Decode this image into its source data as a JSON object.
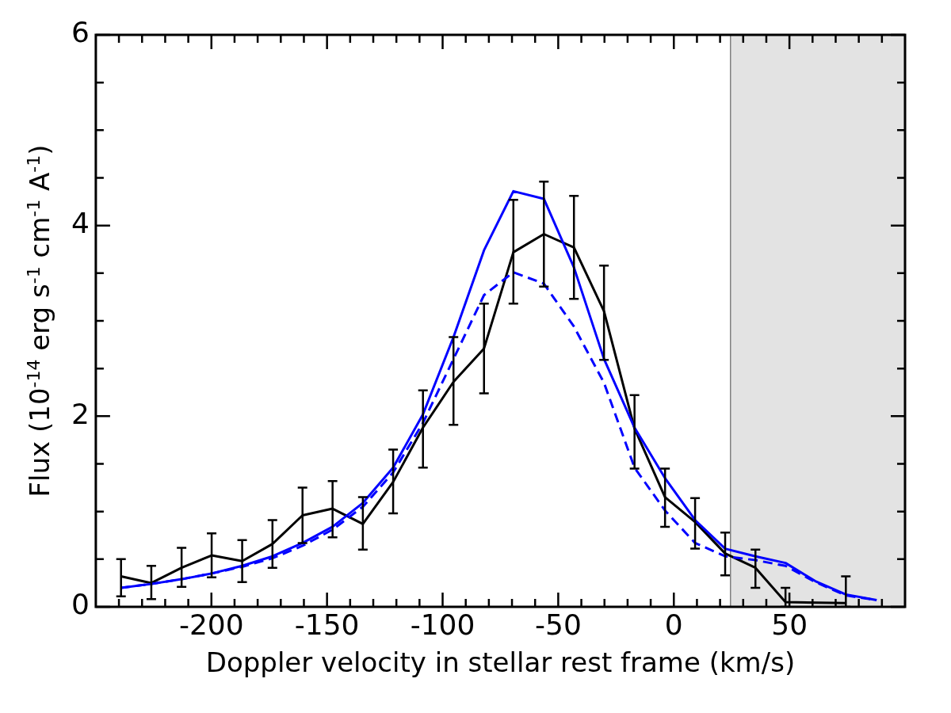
{
  "chart_data": {
    "type": "line",
    "xlabel": "Doppler velocity in stellar rest frame (km/s)",
    "ylabel": "Flux (10$^{-14}$ erg s$^{-1}$ cm$^{-1}$ A$^{-1}$)",
    "x": [
      -239.1,
      -226.0,
      -212.9,
      -199.9,
      -186.7,
      -173.6,
      -160.6,
      -147.6,
      -134.5,
      -121.4,
      -108.5,
      -95.3,
      -82.1,
      -69.4,
      -56.2,
      -43.2,
      -30.2,
      -17.0,
      -3.8,
      9.2,
      22.2,
      35.3,
      48.3,
      61.2,
      74.4,
      87.7
    ],
    "series": [
      {
        "color": "#000000",
        "line_style": "solid",
        "values": [
          0.32,
          0.25,
          0.41,
          0.54,
          0.48,
          0.66,
          0.96,
          1.03,
          0.87,
          1.31,
          1.88,
          2.36,
          2.71,
          3.72,
          3.91,
          3.77,
          3.1,
          1.87,
          1.15,
          0.89,
          0.56,
          0.41,
          0.05,
          null,
          0.04,
          null
        ],
        "errors": [
          [
            0.11,
            0.5
          ],
          [
            0.08,
            0.43
          ],
          [
            0.21,
            0.62
          ],
          [
            0.31,
            0.77
          ],
          [
            0.26,
            0.7
          ],
          [
            0.41,
            0.91
          ],
          [
            0.67,
            1.25
          ],
          [
            0.73,
            1.32
          ],
          [
            0.6,
            1.15
          ],
          [
            0.98,
            1.65
          ],
          [
            1.46,
            2.27
          ],
          [
            1.91,
            2.83
          ],
          [
            2.24,
            3.18
          ],
          [
            3.18,
            4.27
          ],
          [
            3.36,
            4.46
          ],
          [
            3.23,
            4.31
          ],
          [
            2.59,
            3.58
          ],
          [
            1.45,
            2.22
          ],
          [
            0.84,
            1.45
          ],
          [
            0.61,
            1.14
          ],
          [
            0.33,
            0.78
          ],
          [
            0.2,
            0.6
          ],
          [
            0,
            0.2
          ],
          null,
          [
            0,
            0.32
          ],
          null
        ]
      },
      {
        "color": "#0000ff",
        "line_style": "solid",
        "values": [
          0.2,
          0.24,
          0.29,
          0.35,
          0.43,
          0.53,
          0.67,
          0.84,
          1.09,
          1.46,
          2.02,
          2.83,
          3.74,
          4.36,
          4.28,
          3.56,
          2.6,
          1.88,
          1.35,
          0.91,
          0.61,
          0.53,
          0.46,
          0.27,
          0.13,
          0.07
        ]
      },
      {
        "color": "#0000ff",
        "line_style": "dashed",
        "values": [
          0.2,
          0.24,
          0.29,
          0.35,
          0.42,
          0.51,
          0.64,
          0.81,
          1.05,
          1.41,
          1.93,
          2.6,
          3.27,
          3.51,
          3.39,
          2.94,
          2.35,
          1.46,
          1.01,
          0.67,
          0.53,
          0.49,
          0.43,
          0.26,
          0.12,
          0.07
        ]
      }
    ],
    "bands": [
      {
        "axis": "x",
        "from": 24.5,
        "to": 100,
        "color": "#e3e3e3"
      }
    ],
    "ref_lines": [
      {
        "axis": "x",
        "value": 24.5,
        "color": "#808080"
      }
    ],
    "xlim": [
      -250,
      100
    ],
    "xticks": [
      {
        "value": -240,
        "label": null
      },
      {
        "value": -230,
        "label": null
      },
      {
        "value": -220,
        "label": null
      },
      {
        "value": -210,
        "label": null
      },
      -200,
      {
        "value": -190,
        "label": null
      },
      {
        "value": -180,
        "label": null
      },
      {
        "value": -170,
        "label": null
      },
      {
        "value": -160,
        "label": null
      },
      -150,
      {
        "value": -140,
        "label": null
      },
      {
        "value": -130,
        "label": null
      },
      {
        "value": -120,
        "label": null
      },
      {
        "value": -110,
        "label": null
      },
      -100,
      {
        "value": -90,
        "label": null
      },
      {
        "value": -80,
        "label": null
      },
      {
        "value": -70,
        "label": null
      },
      {
        "value": -60,
        "label": null
      },
      -50,
      {
        "value": -40,
        "label": null
      },
      {
        "value": -30,
        "label": null
      },
      {
        "value": -20,
        "label": null
      },
      {
        "value": -10,
        "label": null
      },
      0,
      {
        "value": 10,
        "label": null
      },
      {
        "value": 20,
        "label": null
      },
      {
        "value": 30,
        "label": null
      },
      {
        "value": 40,
        "label": null
      },
      50,
      {
        "value": 60,
        "label": null
      },
      {
        "value": 70,
        "label": null
      },
      {
        "value": 80,
        "label": null
      },
      {
        "value": 90,
        "label": null
      }
    ],
    "ylim": [
      0,
      6
    ],
    "yticks": [
      0,
      {
        "value": 0.5,
        "label": null
      },
      {
        "value": 1,
        "label": null
      },
      {
        "value": 1.5,
        "label": null
      },
      2,
      {
        "value": 2.5,
        "label": null
      },
      {
        "value": 3,
        "label": null
      },
      {
        "value": 3.5,
        "label": null
      },
      4,
      {
        "value": 4.5,
        "label": null
      },
      {
        "value": 5,
        "label": null
      },
      {
        "value": 5.5,
        "label": null
      },
      6
    ],
    "grid": false
  }
}
